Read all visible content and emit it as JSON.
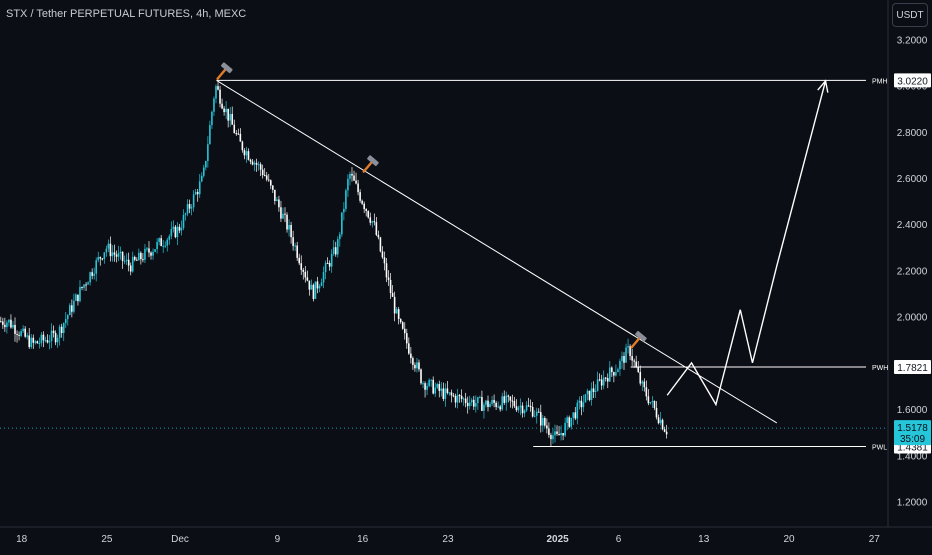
{
  "header": {
    "title": "STX / Tether PERPETUAL FUTURES, 4h, MEXC",
    "currency_button": "USDT"
  },
  "colors": {
    "background": "#0c0e15",
    "candle_up": "#26c6da",
    "candle_down": "#ffffff",
    "drawing_line": "#ffffff",
    "last_price_bg": "#26c6da",
    "axis_text": "#d1d4dc",
    "hammer": "#e07b2a"
  },
  "chart_data": {
    "type": "line",
    "title": "STX / Tether PERPETUAL FUTURES, 4h, MEXC",
    "x_ticks": [
      "18",
      "25",
      "Dec",
      "9",
      "16",
      "23",
      "2025",
      "6",
      "13",
      "20",
      "27"
    ],
    "y_ticks": [
      "3.2000",
      "3.0000",
      "2.8000",
      "2.6000",
      "2.4000",
      "2.2000",
      "2.0000",
      "1.8000",
      "1.6000",
      "1.4000",
      "1.2000"
    ],
    "ylim": [
      1.09,
      3.37
    ],
    "grid": false,
    "price_path": {
      "x": [
        "2024-11-17",
        "2024-11-19",
        "2024-11-21",
        "2024-11-23",
        "2024-11-25",
        "2024-11-27",
        "2024-11-29",
        "2024-12-01",
        "2024-12-03",
        "2024-12-04",
        "2024-12-06",
        "2024-12-08",
        "2024-12-10",
        "2024-12-12",
        "2024-12-14",
        "2024-12-15",
        "2024-12-17",
        "2024-12-19",
        "2024-12-21",
        "2024-12-23",
        "2024-12-26",
        "2024-12-28",
        "2024-12-30",
        "2025-01-01",
        "2025-01-03",
        "2025-01-05",
        "2025-01-06",
        "2025-01-07",
        "2025-01-08",
        "2025-01-10"
      ],
      "y": [
        1.98,
        1.88,
        1.92,
        2.12,
        2.3,
        2.22,
        2.3,
        2.38,
        2.6,
        3.0,
        2.75,
        2.62,
        2.38,
        2.1,
        2.3,
        2.62,
        2.4,
        1.98,
        1.72,
        1.66,
        1.62,
        1.63,
        1.6,
        1.47,
        1.62,
        1.74,
        1.78,
        1.86,
        1.7,
        1.51
      ]
    },
    "levels": [
      {
        "label": "PMH",
        "value": "3.0220",
        "y": 3.022
      },
      {
        "label": "PWH",
        "value": "1.7821",
        "y": 1.7821
      },
      {
        "label": "PWL",
        "value": "1.4381",
        "y": 1.4381
      }
    ],
    "last_price": {
      "value": "1.5178",
      "countdown": "35:09",
      "y": 1.5178
    },
    "trendline": {
      "from": {
        "x": "2024-12-04",
        "y": 3.022
      },
      "to": {
        "x": "2025-01-19",
        "y": 1.54
      }
    },
    "projection_path": {
      "x": [
        "2025-01-10",
        "2025-01-12",
        "2025-01-14",
        "2025-01-16",
        "2025-01-17",
        "2025-01-19",
        "2025-01-23"
      ],
      "y": [
        1.66,
        1.8,
        1.62,
        2.03,
        1.8,
        2.22,
        3.02
      ]
    },
    "hammer_icons": [
      {
        "x": "2024-12-04",
        "y": 3.022
      },
      {
        "x": "2024-12-16",
        "y": 2.62
      },
      {
        "x": "2025-01-07",
        "y": 1.86
      }
    ]
  }
}
